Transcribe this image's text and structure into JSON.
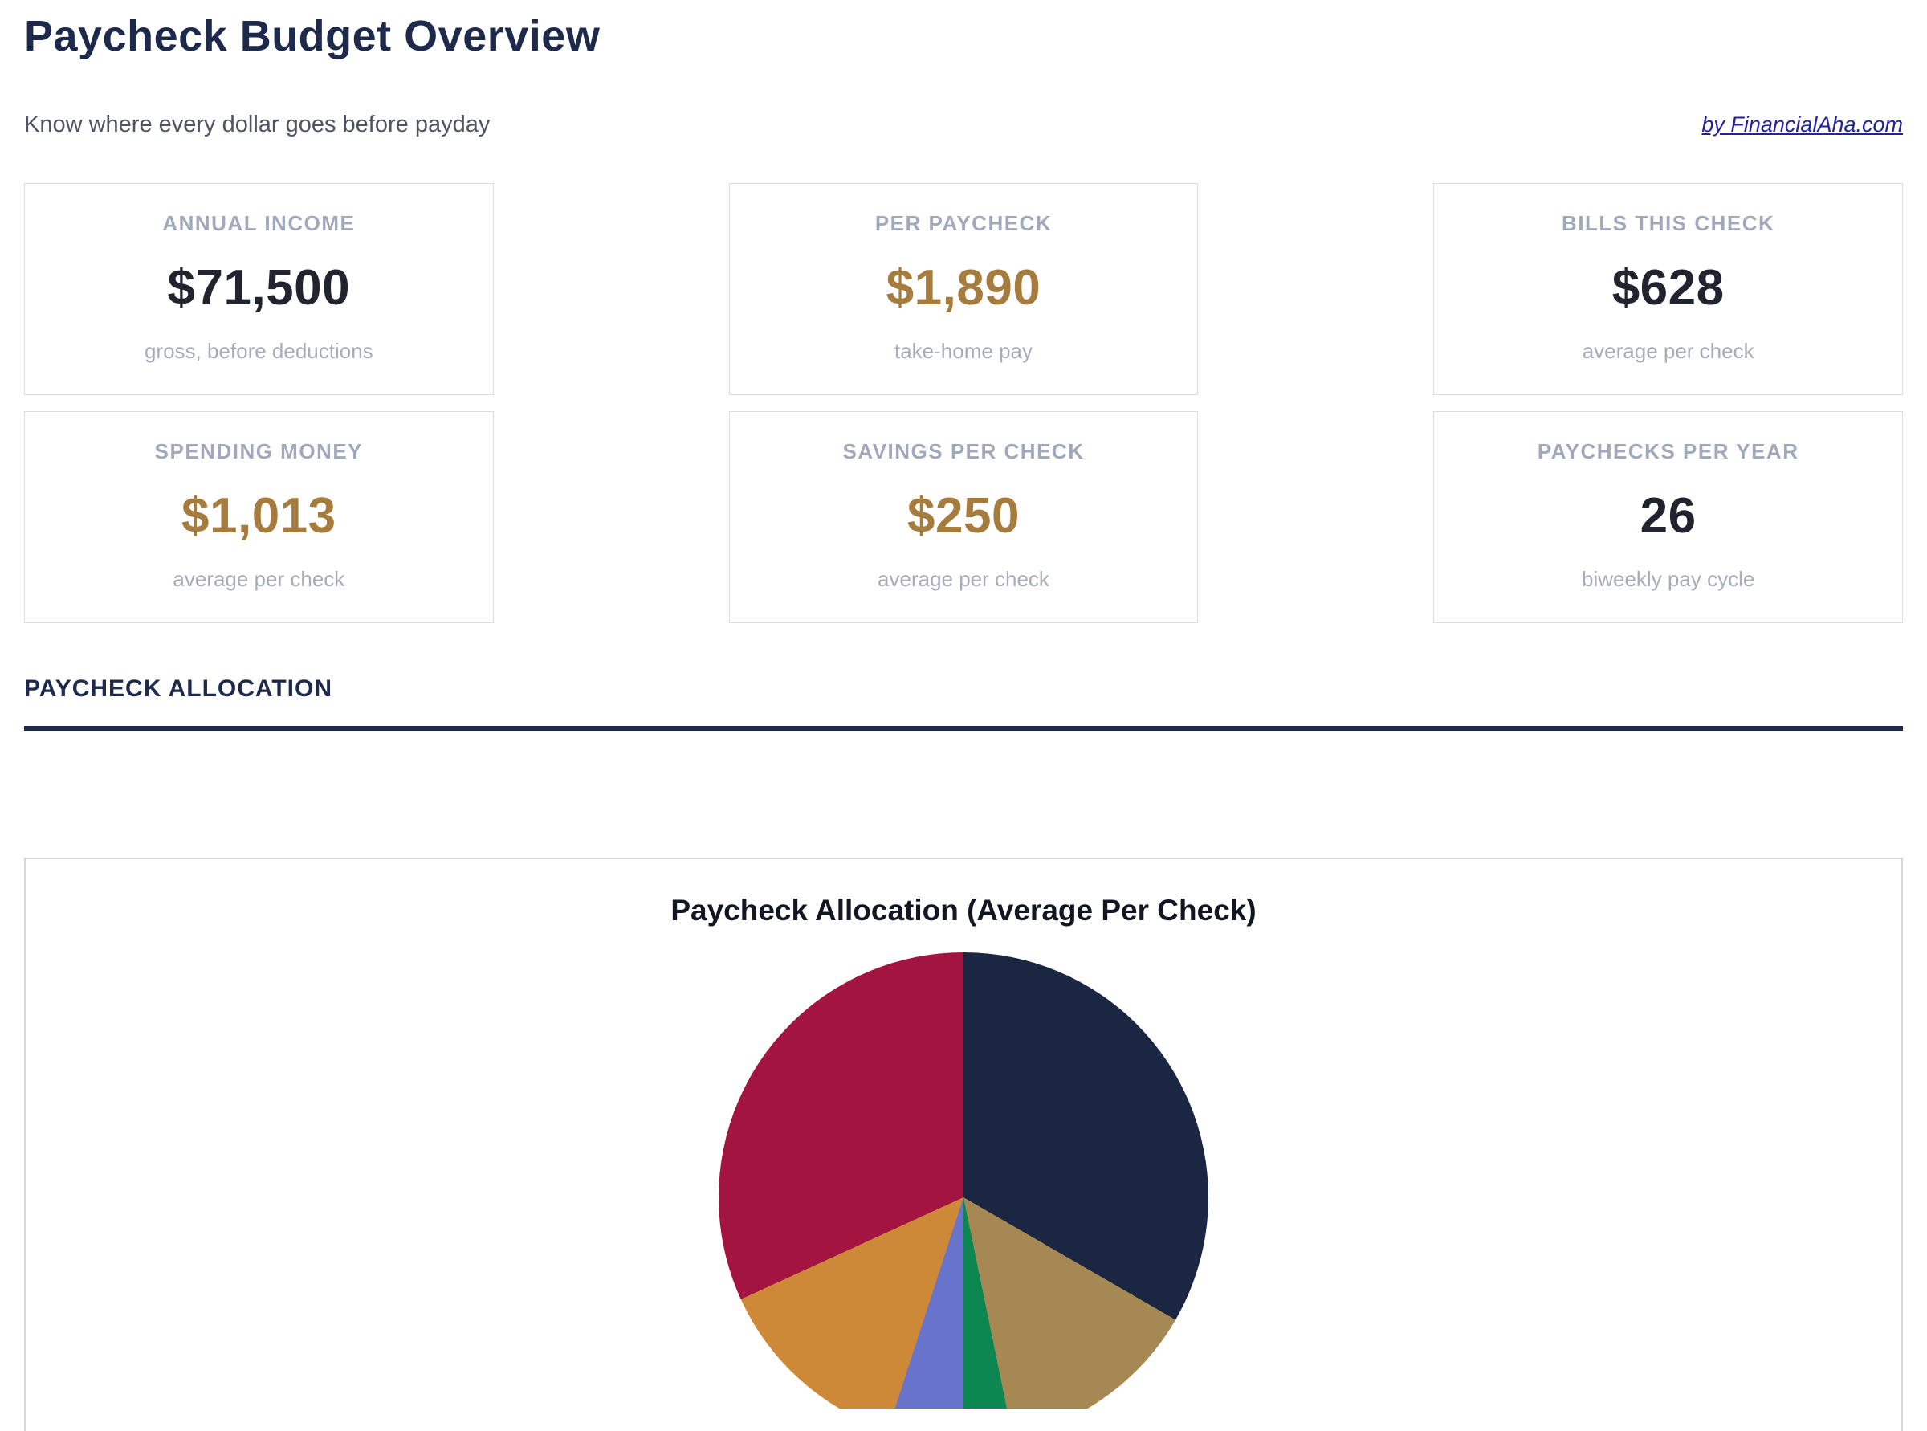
{
  "header": {
    "title": "Paycheck Budget Overview",
    "subtitle": "Know where every dollar goes before payday",
    "link_label": "by FinancialAha.com"
  },
  "stats": {
    "cards": [
      {
        "label": "ANNUAL INCOME",
        "value": "$71,500",
        "sub": "gross, before deductions",
        "emphasis": "dark"
      },
      {
        "label": "PER PAYCHECK",
        "value": "$1,890",
        "sub": "take-home pay",
        "emphasis": "gold"
      },
      {
        "label": "BILLS THIS CHECK",
        "value": "$628",
        "sub": "average per check",
        "emphasis": "dark"
      },
      {
        "label": "SPENDING MONEY",
        "value": "$1,013",
        "sub": "average per check",
        "emphasis": "gold"
      },
      {
        "label": "SAVINGS PER CHECK",
        "value": "$250",
        "sub": "average per check",
        "emphasis": "gold"
      },
      {
        "label": "PAYCHECKS PER YEAR",
        "value": "26",
        "sub": "biweekly pay cycle",
        "emphasis": "dark"
      }
    ]
  },
  "section": {
    "heading": "PAYCHECK ALLOCATION"
  },
  "chart_data": {
    "type": "pie",
    "title": "Paycheck Allocation (Average Per Check)",
    "start_angle": "12 o'clock",
    "direction": "clockwise",
    "labels_visible": false,
    "legend": "none (cut off below screenshot)",
    "segments": [
      {
        "name": "navy-segment",
        "color": "#1b2742",
        "sweep_deg": 120.0,
        "percent": 33.3
      },
      {
        "name": "tan-segment",
        "color": "#a58852",
        "sweep_deg": 48.4,
        "percent": 13.5
      },
      {
        "name": "green-segment",
        "color": "#0c8752",
        "sweep_deg": 11.6,
        "percent": 3.2
      },
      {
        "name": "blue-segment",
        "color": "#6874cc",
        "sweep_deg": 18.0,
        "percent": 5.0
      },
      {
        "name": "orange-segment",
        "color": "#cd8838",
        "sweep_deg": 47.4,
        "percent": 13.2
      },
      {
        "name": "crimson-segment",
        "color": "#a41440",
        "sweep_deg": 114.6,
        "percent": 31.8
      }
    ],
    "layout_note": "pie circle clipped flat at bottom of plot area"
  },
  "colors": {
    "accent_navy": "#1d2a4c",
    "accent_gold": "#a67c3e",
    "link_blue": "#22229e",
    "muted_gray": "#a0a9bb",
    "value_dark": "#20242e",
    "card_border": "#dcdcdc"
  }
}
